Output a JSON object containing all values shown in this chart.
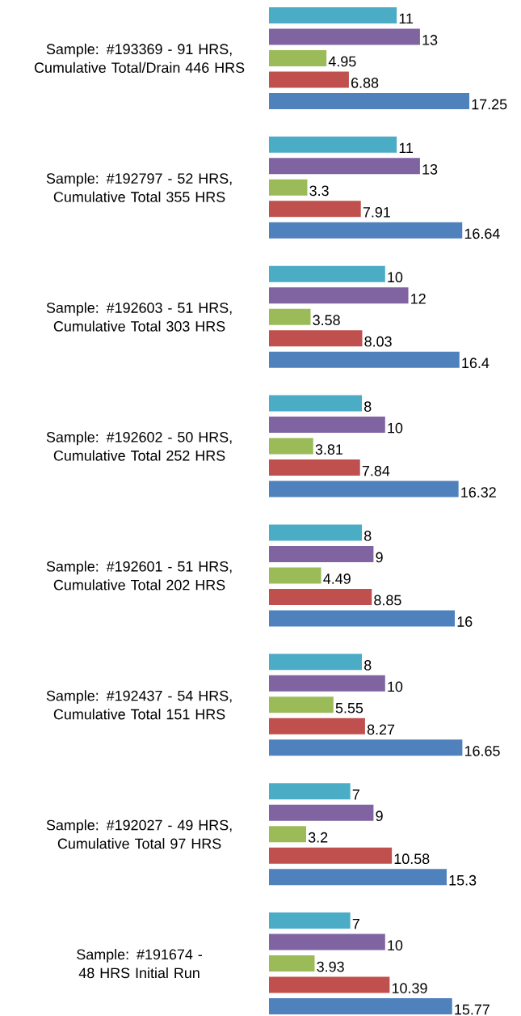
{
  "chart_data": {
    "type": "bar",
    "orientation": "horizontal",
    "data_labels": true,
    "tick_labels": "y",
    "categories": [
      "Sample: #193369 - 91 HRS, Cumulative Total/Drain 446 HRS",
      "Sample: #192797 - 52 HRS, Cumulative Total 355 HRS",
      "Sample: #192603 - 51 HRS, Cumulative Total 303 HRS",
      "Sample: #192602 - 50 HRS, Cumulative Total 252 HRS",
      "Sample: #192601 - 51 HRS, Cumulative Total 202 HRS",
      "Sample: #192437 - 54 HRS, Cumulative Total 151 HRS",
      "Sample: #192027 - 49 HRS, Cumulative Total 97 HRS",
      "Sample: #191674 - 48 HRS Initial Run"
    ],
    "series": [
      {
        "color": "#4bacc6",
        "values": [
          11,
          11,
          10,
          8,
          8,
          8,
          7,
          7
        ]
      },
      {
        "color": "#8064a2",
        "values": [
          13,
          13,
          12,
          10,
          9,
          10,
          9,
          10
        ]
      },
      {
        "color": "#9bbb59",
        "values": [
          4.95,
          3.3,
          3.58,
          3.81,
          4.49,
          5.55,
          3.2,
          3.93
        ]
      },
      {
        "color": "#c0504d",
        "values": [
          6.88,
          7.91,
          8.03,
          7.84,
          8.85,
          8.27,
          10.58,
          10.39
        ]
      },
      {
        "color": "#4f81bd",
        "values": [
          17.25,
          16.64,
          16.4,
          16.32,
          16,
          16.65,
          15.3,
          15.77
        ]
      }
    ]
  }
}
